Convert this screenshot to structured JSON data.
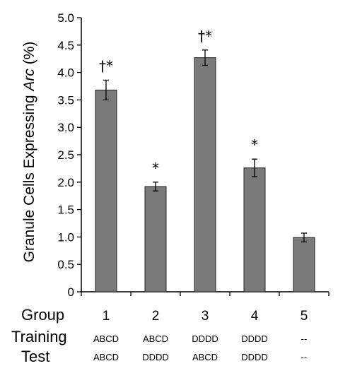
{
  "chart_data": {
    "type": "bar",
    "ylabel_prefix": "Granule Cells Expressing ",
    "ylabel_italic": "Arc",
    "ylabel_suffix": " (%)",
    "ylim": [
      0,
      5.0
    ],
    "yticks": [
      "0",
      "0.5",
      "1.0",
      "1.5",
      "2.0",
      "2.5",
      "3.0",
      "3.5",
      "4.0",
      "4.5",
      "5.0"
    ],
    "categories": [
      "1",
      "2",
      "3",
      "4",
      "5"
    ],
    "values": [
      3.68,
      1.92,
      4.27,
      2.26,
      0.99
    ],
    "errors": [
      0.18,
      0.08,
      0.14,
      0.16,
      0.08
    ],
    "significance": [
      "†*",
      "*",
      "†*",
      "*",
      ""
    ],
    "bar_color": "#7a7a7a",
    "grid": false
  },
  "table": {
    "group_label": "Group",
    "training_label": "Training",
    "test_label": "Test",
    "training": [
      "ABCD",
      "ABCD",
      "DDDD",
      "DDDD",
      "--"
    ],
    "test": [
      "ABCD",
      "DDDD",
      "ABCD",
      "DDDD",
      "--"
    ]
  }
}
